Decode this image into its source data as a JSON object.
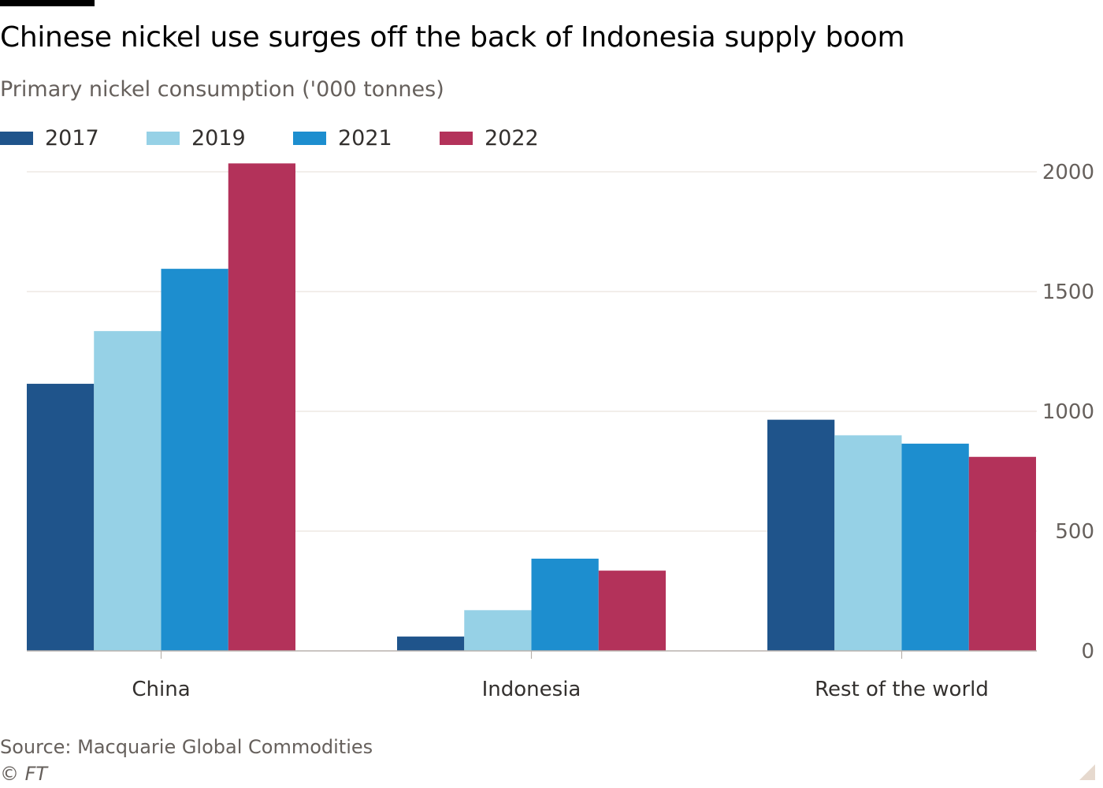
{
  "title": "Chinese nickel use surges off the back of Indonesia supply boom",
  "subtitle": "Primary nickel consumption ('000 tonnes)",
  "source": "Source: Macquarie Global Commodities",
  "copyright": "© FT",
  "colors": {
    "grid": "#e9e3de",
    "axis": "#b8b2ad",
    "tick_text": "#66605c"
  },
  "chart_data": {
    "type": "bar",
    "title": "Chinese nickel use surges off the back of Indonesia supply boom",
    "subtitle": "Primary nickel consumption ('000 tonnes)",
    "categories": [
      "China",
      "Indonesia",
      "Rest of the world"
    ],
    "series": [
      {
        "name": "2017",
        "color": "#1f548b",
        "values": [
          1115,
          60,
          965
        ]
      },
      {
        "name": "2019",
        "color": "#96d1e6",
        "values": [
          1335,
          170,
          900
        ]
      },
      {
        "name": "2021",
        "color": "#1d8ecf",
        "values": [
          1595,
          385,
          865
        ]
      },
      {
        "name": "2022",
        "color": "#b3325a",
        "values": [
          2035,
          335,
          810
        ]
      }
    ],
    "yticks": [
      "0",
      "500",
      "1000",
      "1500",
      "2000"
    ],
    "ytick_values": [
      0,
      500,
      1000,
      1500,
      2000
    ],
    "ylim": [
      0,
      2000
    ],
    "y_axis_side": "right",
    "grid": true,
    "legend_position": "top-left"
  }
}
